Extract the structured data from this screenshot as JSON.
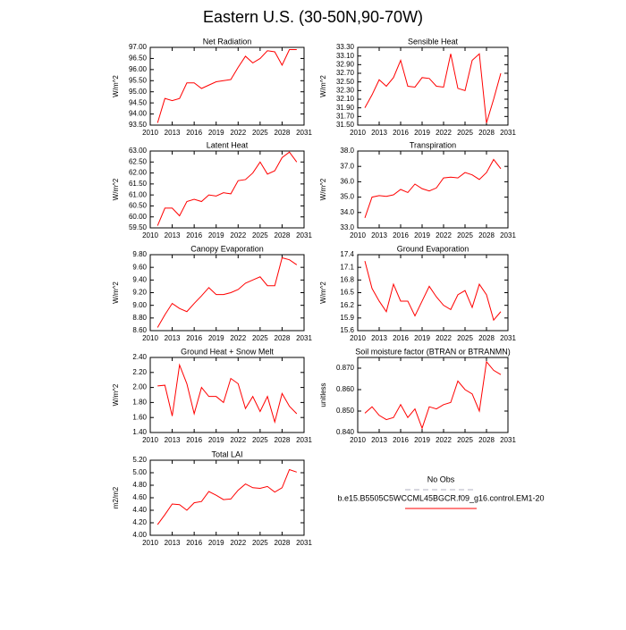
{
  "title": "Eastern U.S. (30-50N,90-70W)",
  "legend": [
    {
      "name": "No Obs",
      "color": "#b0b0c0",
      "dashed": true
    },
    {
      "name": "b.e15.B5505C5WCCML45BGCR.f09_g16.control.EM1-20",
      "color": "#ff0000",
      "dashed": false
    }
  ],
  "chart_data": [
    {
      "type": "line",
      "title": "Net Radiation",
      "ylabel": "W/m^2",
      "color": "#ff0000",
      "x": [
        2011,
        2012,
        2013,
        2014,
        2015,
        2016,
        2017,
        2018,
        2019,
        2020,
        2021,
        2022,
        2023,
        2024,
        2025,
        2026,
        2027,
        2028,
        2029,
        2030
      ],
      "values": [
        93.6,
        94.7,
        94.6,
        94.7,
        95.4,
        95.4,
        95.15,
        95.3,
        95.45,
        95.5,
        95.55,
        96.1,
        96.6,
        96.3,
        96.5,
        96.85,
        96.8,
        96.2,
        96.9,
        96.9
      ],
      "xlim": [
        2010,
        2031
      ],
      "xticks": [
        2010,
        2013,
        2016,
        2019,
        2022,
        2025,
        2028,
        2031
      ],
      "ylim": [
        93.5,
        97
      ],
      "yticks": [
        {
          "value": 93.5,
          "label": "93.50"
        },
        {
          "value": 94,
          "label": "94.00"
        },
        {
          "value": 94.5,
          "label": "94.50"
        },
        {
          "value": 95,
          "label": "95.00"
        },
        {
          "value": 95.5,
          "label": "95.50"
        },
        {
          "value": 96,
          "label": "96.00"
        },
        {
          "value": 96.5,
          "label": "96.50"
        },
        {
          "value": 97,
          "label": "97.00"
        }
      ]
    },
    {
      "type": "line",
      "title": "Sensible Heat",
      "ylabel": "W/m^2",
      "color": "#ff0000",
      "x": [
        2011,
        2012,
        2013,
        2014,
        2015,
        2016,
        2017,
        2018,
        2019,
        2020,
        2021,
        2022,
        2023,
        2024,
        2025,
        2026,
        2027,
        2028,
        2029,
        2030
      ],
      "values": [
        31.9,
        32.2,
        32.55,
        32.4,
        32.6,
        33.0,
        32.4,
        32.38,
        32.6,
        32.58,
        32.4,
        32.38,
        33.15,
        32.35,
        32.3,
        33.0,
        33.15,
        31.55,
        32.1,
        32.7
      ],
      "xlim": [
        2010,
        2031
      ],
      "xticks": [
        2010,
        2013,
        2016,
        2019,
        2022,
        2025,
        2028,
        2031
      ],
      "ylim": [
        31.5,
        33.3
      ],
      "yticks": [
        {
          "value": 31.5,
          "label": "31.50"
        },
        {
          "value": 31.7,
          "label": "31.70"
        },
        {
          "value": 31.9,
          "label": "31.90"
        },
        {
          "value": 32.1,
          "label": "32.10"
        },
        {
          "value": 32.3,
          "label": "32.30"
        },
        {
          "value": 32.5,
          "label": "32.50"
        },
        {
          "value": 32.7,
          "label": "32.70"
        },
        {
          "value": 32.9,
          "label": "32.90"
        },
        {
          "value": 33.1,
          "label": "33.10"
        },
        {
          "value": 33.3,
          "label": "33.30"
        }
      ]
    },
    {
      "type": "line",
      "title": "Latent Heat",
      "ylabel": "W/m^2",
      "color": "#ff0000",
      "x": [
        2011,
        2012,
        2013,
        2014,
        2015,
        2016,
        2017,
        2018,
        2019,
        2020,
        2021,
        2022,
        2023,
        2024,
        2025,
        2026,
        2027,
        2028,
        2029,
        2030
      ],
      "values": [
        59.6,
        60.4,
        60.4,
        60.05,
        60.7,
        60.8,
        60.7,
        61.0,
        60.95,
        61.1,
        61.05,
        61.65,
        61.7,
        62.0,
        62.5,
        61.95,
        62.1,
        62.7,
        62.95,
        62.5
      ],
      "xlim": [
        2010,
        2031
      ],
      "xticks": [
        2010,
        2013,
        2016,
        2019,
        2022,
        2025,
        2028,
        2031
      ],
      "ylim": [
        59.5,
        63
      ],
      "yticks": [
        {
          "value": 59.5,
          "label": "59.50"
        },
        {
          "value": 60,
          "label": "60.00"
        },
        {
          "value": 60.5,
          "label": "60.50"
        },
        {
          "value": 61,
          "label": "61.00"
        },
        {
          "value": 61.5,
          "label": "61.50"
        },
        {
          "value": 62,
          "label": "62.00"
        },
        {
          "value": 62.5,
          "label": "62.50"
        },
        {
          "value": 63,
          "label": "63.00"
        }
      ]
    },
    {
      "type": "line",
      "title": "Transpiration",
      "ylabel": "W/m^2",
      "color": "#ff0000",
      "x": [
        2011,
        2012,
        2013,
        2014,
        2015,
        2016,
        2017,
        2018,
        2019,
        2020,
        2021,
        2022,
        2023,
        2024,
        2025,
        2026,
        2027,
        2028,
        2029,
        2030
      ],
      "values": [
        33.65,
        35.0,
        35.1,
        35.05,
        35.15,
        35.5,
        35.3,
        35.85,
        35.55,
        35.4,
        35.6,
        36.25,
        36.3,
        36.25,
        36.6,
        36.45,
        36.15,
        36.6,
        37.45,
        36.85
      ],
      "xlim": [
        2010,
        2031
      ],
      "xticks": [
        2010,
        2013,
        2016,
        2019,
        2022,
        2025,
        2028,
        2031
      ],
      "ylim": [
        33,
        38
      ],
      "yticks": [
        {
          "value": 33,
          "label": "33.0"
        },
        {
          "value": 34,
          "label": "34.0"
        },
        {
          "value": 35,
          "label": "35.0"
        },
        {
          "value": 36,
          "label": "36.0"
        },
        {
          "value": 37,
          "label": "37.0"
        },
        {
          "value": 38,
          "label": "38.0"
        }
      ]
    },
    {
      "type": "line",
      "title": "Canopy Evaporation",
      "ylabel": "W/m^2",
      "color": "#ff0000",
      "x": [
        2011,
        2012,
        2013,
        2014,
        2015,
        2016,
        2017,
        2018,
        2019,
        2020,
        2021,
        2022,
        2023,
        2024,
        2025,
        2026,
        2027,
        2028,
        2029,
        2030
      ],
      "values": [
        8.65,
        8.85,
        9.03,
        8.95,
        8.9,
        9.03,
        9.15,
        9.28,
        9.17,
        9.17,
        9.2,
        9.25,
        9.35,
        9.4,
        9.45,
        9.31,
        9.31,
        9.75,
        9.72,
        9.64
      ],
      "xlim": [
        2010,
        2031
      ],
      "xticks": [
        2010,
        2013,
        2016,
        2019,
        2022,
        2025,
        2028,
        2031
      ],
      "ylim": [
        8.6,
        9.8
      ],
      "yticks": [
        {
          "value": 8.6,
          "label": "8.60"
        },
        {
          "value": 8.8,
          "label": "8.80"
        },
        {
          "value": 9.0,
          "label": "9.00"
        },
        {
          "value": 9.2,
          "label": "9.20"
        },
        {
          "value": 9.4,
          "label": "9.40"
        },
        {
          "value": 9.6,
          "label": "9.60"
        },
        {
          "value": 9.8,
          "label": "9.80"
        }
      ]
    },
    {
      "type": "line",
      "title": "Ground Evaporation",
      "ylabel": "W/m^2",
      "color": "#ff0000",
      "x": [
        2011,
        2012,
        2013,
        2014,
        2015,
        2016,
        2017,
        2018,
        2019,
        2020,
        2021,
        2022,
        2023,
        2024,
        2025,
        2026,
        2027,
        2028,
        2029,
        2030
      ],
      "values": [
        17.25,
        16.6,
        16.3,
        16.05,
        16.7,
        16.3,
        16.3,
        15.95,
        16.3,
        16.65,
        16.4,
        16.2,
        16.1,
        16.45,
        16.55,
        16.15,
        16.7,
        16.45,
        15.85,
        16.05
      ],
      "xlim": [
        2010,
        2031
      ],
      "xticks": [
        2010,
        2013,
        2016,
        2019,
        2022,
        2025,
        2028,
        2031
      ],
      "ylim": [
        15.6,
        17.4
      ],
      "yticks": [
        15.6,
        15.9,
        16.2,
        16.5,
        16.8,
        17.1,
        17.4
      ]
    },
    {
      "type": "line",
      "title": "Ground Heat + Snow Melt",
      "ylabel": "W/m^2",
      "color": "#ff0000",
      "x": [
        2011,
        2012,
        2013,
        2014,
        2015,
        2016,
        2017,
        2018,
        2019,
        2020,
        2021,
        2022,
        2023,
        2024,
        2025,
        2026,
        2027,
        2028,
        2029,
        2030
      ],
      "values": [
        2.02,
        2.03,
        1.62,
        2.3,
        2.05,
        1.65,
        2.0,
        1.88,
        1.88,
        1.8,
        2.12,
        2.05,
        1.72,
        1.88,
        1.68,
        1.88,
        1.54,
        1.92,
        1.75,
        1.65
      ],
      "xlim": [
        2010,
        2031
      ],
      "xticks": [
        2010,
        2013,
        2016,
        2019,
        2022,
        2025,
        2028,
        2031
      ],
      "ylim": [
        1.4,
        2.4
      ],
      "yticks": [
        {
          "value": 1.4,
          "label": "1.40"
        },
        {
          "value": 1.6,
          "label": "1.60"
        },
        {
          "value": 1.8,
          "label": "1.80"
        },
        {
          "value": 2.0,
          "label": "2.00"
        },
        {
          "value": 2.2,
          "label": "2.20"
        },
        {
          "value": 2.4,
          "label": "2.40"
        }
      ]
    },
    {
      "type": "line",
      "title": "Soil moisture factor (BTRAN or BTRANMN)",
      "ylabel": "unitless",
      "color": "#ff0000",
      "x": [
        2011,
        2012,
        2013,
        2014,
        2015,
        2016,
        2017,
        2018,
        2019,
        2020,
        2021,
        2022,
        2023,
        2024,
        2025,
        2026,
        2027,
        2028,
        2029,
        2030
      ],
      "values": [
        0.849,
        0.852,
        0.848,
        0.846,
        0.847,
        0.853,
        0.847,
        0.851,
        0.842,
        0.852,
        0.851,
        0.853,
        0.854,
        0.864,
        0.86,
        0.858,
        0.85,
        0.873,
        0.869,
        0.867
      ],
      "xlim": [
        2010,
        2031
      ],
      "xticks": [
        2010,
        2013,
        2016,
        2019,
        2022,
        2025,
        2028,
        2031
      ],
      "ylim": [
        0.84,
        0.875
      ],
      "yticks": [
        {
          "value": 0.84,
          "label": "0.840"
        },
        {
          "value": 0.85,
          "label": "0.850"
        },
        {
          "value": 0.86,
          "label": "0.860"
        },
        {
          "value": 0.87,
          "label": "0.870"
        }
      ]
    },
    {
      "type": "line",
      "title": "Total LAI",
      "ylabel": "m2/m2",
      "color": "#ff0000",
      "x": [
        2011,
        2012,
        2013,
        2014,
        2015,
        2016,
        2017,
        2018,
        2019,
        2020,
        2021,
        2022,
        2023,
        2024,
        2025,
        2026,
        2027,
        2028,
        2029,
        2030
      ],
      "values": [
        4.17,
        4.33,
        4.5,
        4.49,
        4.4,
        4.52,
        4.54,
        4.7,
        4.64,
        4.57,
        4.58,
        4.72,
        4.82,
        4.76,
        4.75,
        4.78,
        4.69,
        4.76,
        5.05,
        5.01
      ],
      "xlim": [
        2010,
        2031
      ],
      "xticks": [
        2010,
        2013,
        2016,
        2019,
        2022,
        2025,
        2028,
        2031
      ],
      "ylim": [
        4.0,
        5.2
      ],
      "yticks": [
        {
          "value": 4.0,
          "label": "4.00"
        },
        {
          "value": 4.2,
          "label": "4.20"
        },
        {
          "value": 4.4,
          "label": "4.40"
        },
        {
          "value": 4.6,
          "label": "4.60"
        },
        {
          "value": 4.8,
          "label": "4.80"
        },
        {
          "value": 5.0,
          "label": "5.00"
        },
        {
          "value": 5.2,
          "label": "5.20"
        }
      ]
    }
  ]
}
